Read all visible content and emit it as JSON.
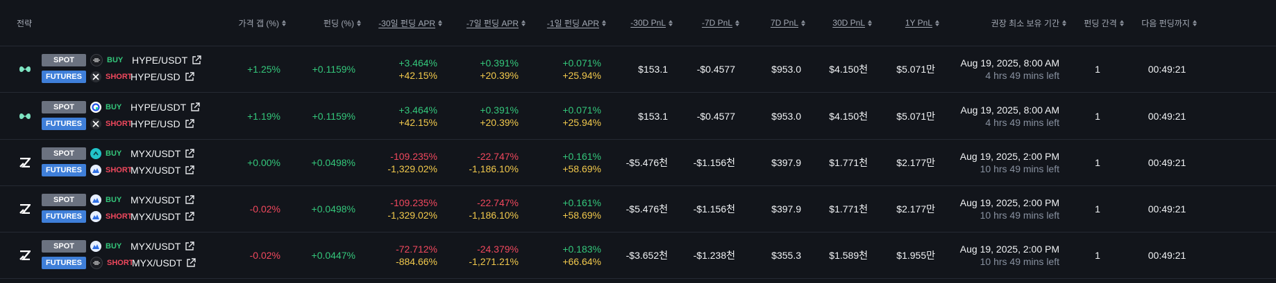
{
  "header": {
    "strategy": "전략",
    "price_gap": "가격 갭 (%)",
    "funding": "펀딩 (%)",
    "apr30": "-30일 펀딩 APR",
    "apr7": "-7일 펀딩 APR",
    "apr1": "-1일 펀딩 APR",
    "pnl30_neg": "-30D PnL",
    "pnl7_neg": "-7D PnL",
    "pnl7": "7D PnL",
    "pnl30": "30D PnL",
    "pnl1y": "1Y PnL",
    "hold": "권장 최소 보유 기간",
    "interval": "펀딩 간격",
    "next": "다음 펀딩까지"
  },
  "colors": {
    "positive": "#34c77b",
    "negative": "#f0485d",
    "yellow": "#f2c94c",
    "spot_badge": "#6b7280",
    "futures_badge": "#3f7fd9"
  },
  "rows": [
    {
      "strategy_icon": "hyperliquid-logo-icon",
      "spot": {
        "badge": "SPOT",
        "exchange_icon": "bitget-icon",
        "side": "BUY",
        "pair": "HYPE/USDT"
      },
      "futures": {
        "badge": "FUTURES",
        "exchange_icon": "x-exchange-icon",
        "side": "SHORT",
        "pair": "HYPE/USD"
      },
      "price_gap": "+1.25%",
      "funding": "+0.1159%",
      "apr30": [
        "+3.464%",
        "+42.15%"
      ],
      "apr7": [
        "+0.391%",
        "+20.39%"
      ],
      "apr1": [
        "+0.071%",
        "+25.94%"
      ],
      "pnl30_neg": "$153.1",
      "pnl7_neg": "-$0.4577",
      "pnl7": "$953.0",
      "pnl30": "$4.150천",
      "pnl1y": "$5.071만",
      "hold_date": "Aug 19, 2025, 8:00 AM",
      "hold_left": "4 hrs 49 mins left",
      "interval": "1",
      "next": "00:49:21"
    },
    {
      "strategy_icon": "hyperliquid-logo-icon",
      "spot": {
        "badge": "SPOT",
        "exchange_icon": "gate-icon",
        "side": "BUY",
        "pair": "HYPE/USDT"
      },
      "futures": {
        "badge": "FUTURES",
        "exchange_icon": "x-exchange-icon",
        "side": "SHORT",
        "pair": "HYPE/USD"
      },
      "price_gap": "+1.19%",
      "funding": "+0.1159%",
      "apr30": [
        "+3.464%",
        "+42.15%"
      ],
      "apr7": [
        "+0.391%",
        "+20.39%"
      ],
      "apr1": [
        "+0.071%",
        "+25.94%"
      ],
      "pnl30_neg": "$153.1",
      "pnl7_neg": "-$0.4577",
      "pnl7": "$953.0",
      "pnl30": "$4.150천",
      "pnl1y": "$5.071만",
      "hold_date": "Aug 19, 2025, 8:00 AM",
      "hold_left": "4 hrs 49 mins left",
      "interval": "1",
      "next": "00:49:21"
    },
    {
      "strategy_icon": "myx-logo-icon",
      "spot": {
        "badge": "SPOT",
        "exchange_icon": "exchange-teal-icon",
        "side": "BUY",
        "pair": "MYX/USDT"
      },
      "futures": {
        "badge": "FUTURES",
        "exchange_icon": "exchange-blue-icon",
        "side": "SHORT",
        "pair": "MYX/USDT"
      },
      "price_gap": "+0.00%",
      "funding": "+0.0498%",
      "apr30": [
        "-109.235%",
        "-1,329.02%"
      ],
      "apr7": [
        "-22.747%",
        "-1,186.10%"
      ],
      "apr1": [
        "+0.161%",
        "+58.69%"
      ],
      "pnl30_neg": "-$5.476천",
      "pnl7_neg": "-$1.156천",
      "pnl7": "$397.9",
      "pnl30": "$1.771천",
      "pnl1y": "$2.177만",
      "hold_date": "Aug 19, 2025, 2:00 PM",
      "hold_left": "10 hrs 49 mins left",
      "interval": "1",
      "next": "00:49:21"
    },
    {
      "strategy_icon": "myx-logo-icon",
      "spot": {
        "badge": "SPOT",
        "exchange_icon": "exchange-blue-icon",
        "side": "BUY",
        "pair": "MYX/USDT"
      },
      "futures": {
        "badge": "FUTURES",
        "exchange_icon": "exchange-blue-icon",
        "side": "SHORT",
        "pair": "MYX/USDT"
      },
      "price_gap": "-0.02%",
      "funding": "+0.0498%",
      "apr30": [
        "-109.235%",
        "-1,329.02%"
      ],
      "apr7": [
        "-22.747%",
        "-1,186.10%"
      ],
      "apr1": [
        "+0.161%",
        "+58.69%"
      ],
      "pnl30_neg": "-$5.476천",
      "pnl7_neg": "-$1.156천",
      "pnl7": "$397.9",
      "pnl30": "$1.771천",
      "pnl1y": "$2.177만",
      "hold_date": "Aug 19, 2025, 2:00 PM",
      "hold_left": "10 hrs 49 mins left",
      "interval": "1",
      "next": "00:49:21"
    },
    {
      "strategy_icon": "myx-logo-icon",
      "spot": {
        "badge": "SPOT",
        "exchange_icon": "exchange-blue-icon",
        "side": "BUY",
        "pair": "MYX/USDT"
      },
      "futures": {
        "badge": "FUTURES",
        "exchange_icon": "bitget-icon",
        "side": "SHORT",
        "pair": "MYX/USDT"
      },
      "price_gap": "-0.02%",
      "funding": "+0.0447%",
      "apr30": [
        "-72.712%",
        "-884.66%"
      ],
      "apr7": [
        "-24.379%",
        "-1,271.21%"
      ],
      "apr1": [
        "+0.183%",
        "+66.64%"
      ],
      "pnl30_neg": "-$3.652천",
      "pnl7_neg": "-$1.238천",
      "pnl7": "$355.3",
      "pnl30": "$1.589천",
      "pnl1y": "$1.955만",
      "hold_date": "Aug 19, 2025, 2:00 PM",
      "hold_left": "10 hrs 49 mins left",
      "interval": "1",
      "next": "00:49:21"
    }
  ]
}
